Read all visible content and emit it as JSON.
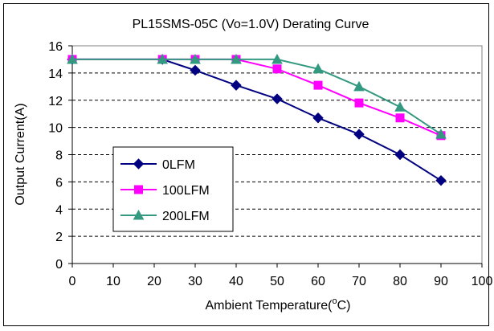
{
  "chart_data": {
    "type": "line",
    "title": "PL15SMS-05C (Vo=1.0V) Derating Curve",
    "xlabel": "Ambient Temperature(",
    "xlabel_sup": "o",
    "xlabel_suffix": "C)",
    "ylabel": "Output Current(A)",
    "xlim": [
      0,
      100
    ],
    "ylim": [
      0,
      16
    ],
    "xticks": [
      0,
      10,
      20,
      30,
      40,
      50,
      60,
      70,
      80,
      90,
      100
    ],
    "yticks": [
      0,
      2,
      4,
      6,
      8,
      10,
      12,
      14,
      16
    ],
    "grid": "horizontal-dashed",
    "legend_position": "left-middle",
    "series": [
      {
        "name": "0LFM",
        "color": "#000080",
        "marker": "diamond",
        "x": [
          0,
          22,
          30,
          40,
          50,
          60,
          70,
          80,
          90
        ],
        "y": [
          15,
          15,
          14.2,
          13.1,
          12.1,
          10.7,
          9.5,
          8.0,
          6.1
        ]
      },
      {
        "name": "100LFM",
        "color": "#ff00ff",
        "marker": "square",
        "x": [
          0,
          22,
          30,
          40,
          50,
          60,
          70,
          80,
          90
        ],
        "y": [
          15,
          15,
          15,
          15,
          14.3,
          13.1,
          11.8,
          10.7,
          9.4
        ]
      },
      {
        "name": "200LFM",
        "color": "#339980",
        "marker": "triangle",
        "x": [
          0,
          22,
          30,
          40,
          50,
          60,
          70,
          80,
          90
        ],
        "y": [
          15,
          15,
          15,
          15,
          15.0,
          14.3,
          13.0,
          11.5,
          9.5
        ]
      }
    ]
  }
}
